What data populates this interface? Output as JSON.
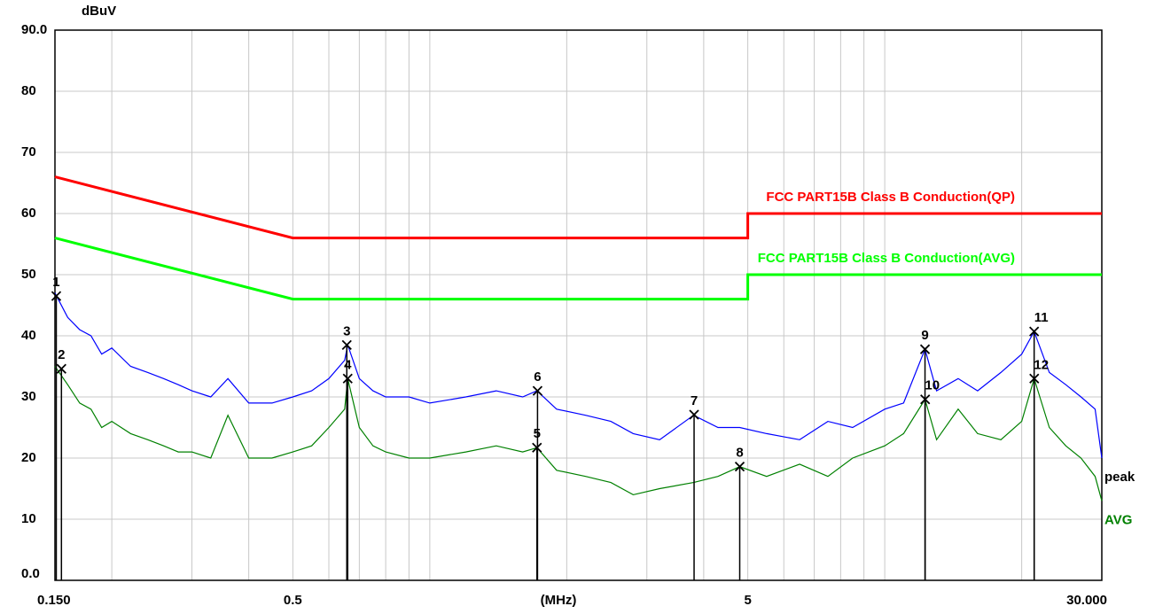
{
  "chart_data": {
    "type": "line",
    "ylabel": "dBuV",
    "xlabel": "(MHz)",
    "xscale": "log",
    "xlim": [
      0.15,
      30
    ],
    "xticks": [
      {
        "value": 0.15,
        "label": "0.150"
      },
      0.5,
      5,
      {
        "value": 30,
        "label": "30.000"
      }
    ],
    "x_minor_ticks": [
      0.2,
      0.3,
      0.4,
      0.6,
      0.7,
      0.8,
      0.9,
      1,
      2,
      3,
      4,
      6,
      7,
      8,
      9,
      10,
      20
    ],
    "ylim": [
      0,
      90
    ],
    "yticks": [
      {
        "value": 0,
        "label": "0.0"
      },
      10,
      20,
      30,
      40,
      50,
      60,
      70,
      80,
      {
        "value": 90,
        "label": "90.0"
      }
    ],
    "grid": true,
    "x": [
      0.15,
      0.16,
      0.17,
      0.18,
      0.19,
      0.2,
      0.22,
      0.24,
      0.26,
      0.28,
      0.3,
      0.33,
      0.36,
      0.4,
      0.45,
      0.5,
      0.55,
      0.6,
      0.65,
      0.66,
      0.7,
      0.75,
      0.8,
      0.9,
      1.0,
      1.2,
      1.4,
      1.6,
      1.72,
      1.9,
      2.2,
      2.5,
      2.8,
      3.2,
      3.8,
      4.3,
      4.8,
      5.5,
      6.5,
      7.5,
      8.5,
      10,
      11,
      12.26,
      13,
      14.5,
      16,
      18,
      20,
      21.3,
      23,
      25,
      27,
      29,
      30
    ],
    "series": [
      {
        "name": "peak",
        "color": "#0000ff",
        "label_color": "#000000",
        "values": [
          47,
          43,
          41,
          40,
          37,
          38,
          35,
          34,
          33,
          32,
          31,
          30,
          33,
          29,
          29,
          30,
          31,
          33,
          36,
          38.5,
          33,
          31,
          30,
          30,
          29,
          30,
          31,
          30,
          31,
          28,
          27,
          26,
          24,
          23,
          27,
          25,
          25,
          24,
          23,
          26,
          25,
          28,
          29,
          37.8,
          31,
          33,
          31,
          34,
          37,
          40.7,
          34,
          32,
          30,
          28,
          20
        ]
      },
      {
        "name": "AVG",
        "color": "#008000",
        "label_color": "#008000",
        "values": [
          35,
          32,
          29,
          28,
          25,
          26,
          24,
          23,
          22,
          21,
          21,
          20,
          27,
          20,
          20,
          21,
          22,
          25,
          28,
          33,
          25,
          22,
          21,
          20,
          20,
          21,
          22,
          21,
          21.7,
          18,
          17,
          16,
          14,
          15,
          16,
          17,
          18.6,
          17,
          19,
          17,
          20,
          22,
          24,
          29.6,
          23,
          28,
          24,
          23,
          26,
          33,
          25,
          22,
          20,
          17,
          13
        ]
      }
    ],
    "limits": [
      {
        "name": "FCC PART15B Class B Conduction(QP)",
        "color": "#ff0000",
        "x": [
          0.15,
          0.5,
          5,
          5,
          30
        ],
        "values": [
          66,
          56,
          56,
          60,
          60
        ]
      },
      {
        "name": "FCC PART15B Class B Conduction(AVG)",
        "color": "#00ff00",
        "x": [
          0.15,
          0.5,
          5,
          5,
          30
        ],
        "values": [
          56,
          46,
          46,
          50,
          50
        ]
      }
    ],
    "markers": [
      {
        "label": "1",
        "x": 0.151,
        "value": 46.5
      },
      {
        "label": "2",
        "x": 0.155,
        "value": 34.6
      },
      {
        "label": "3",
        "x": 0.657,
        "value": 38.5
      },
      {
        "label": "4",
        "x": 0.66,
        "value": 33.0
      },
      {
        "label": "5",
        "x": 1.72,
        "value": 21.7
      },
      {
        "label": "6",
        "x": 1.725,
        "value": 31.0
      },
      {
        "label": "7",
        "x": 3.81,
        "value": 27.1
      },
      {
        "label": "8",
        "x": 4.8,
        "value": 18.6
      },
      {
        "label": "9",
        "x": 12.26,
        "value": 37.8
      },
      {
        "label": "10",
        "x": 12.27,
        "value": 29.6
      },
      {
        "label": "11",
        "x": 21.3,
        "value": 40.7
      },
      {
        "label": "12",
        "x": 21.31,
        "value": 33.0
      }
    ]
  }
}
